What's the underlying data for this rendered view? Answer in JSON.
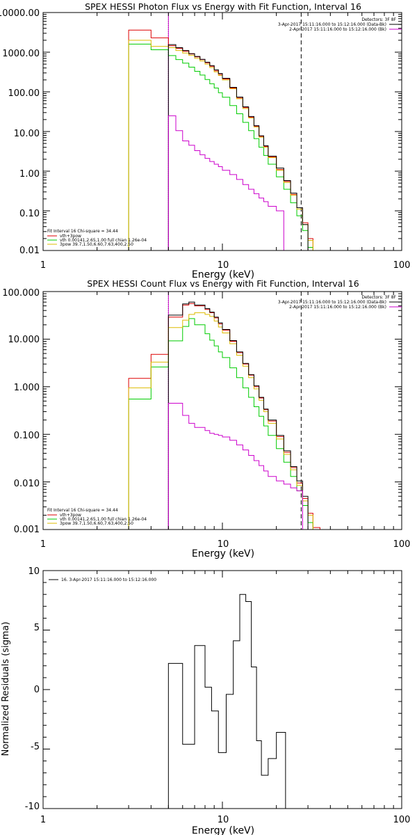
{
  "chart_data": [
    {
      "type": "line",
      "title": "SPEX HESSI Photon Flux vs Energy with Fit Function, Interval 16",
      "xlabel": "Energy (keV)",
      "xscale": "log",
      "yscale": "log",
      "xlim": [
        1,
        100
      ],
      "ylim": [
        0.01,
        10000
      ],
      "xticks": [
        "1",
        "10",
        "100"
      ],
      "yticks": [
        "10000.00",
        "1000.00",
        "100.00",
        "10.00",
        "1.00",
        "0.10",
        "0.01"
      ],
      "vlines": [
        {
          "x": 5,
          "style": "dotted",
          "color": "#000000"
        },
        {
          "x": 5,
          "style": "solid",
          "color": "#cc00cc"
        },
        {
          "x": 27.5,
          "style": "dashed",
          "color": "#000000"
        }
      ],
      "legend_tr": {
        "header": "Detectors: 3F 8F",
        "items": [
          {
            "text": "3-Apr-2017 15:11:16.000 to 15:12:16.000 (Data-Bk)",
            "color": "#000000"
          },
          {
            "text": "2-Apr-2017 15:11:16.000 to 15:12:16.000 (Bk)",
            "color": "#cc00cc"
          }
        ]
      },
      "legend_bl": {
        "header": "Fit Interval 16    Chi-square = 34.44",
        "items": [
          {
            "text": "vth+3pow",
            "color": "#dd0000"
          },
          {
            "text": "vth 0.00141,2.65,1.00  full chian 1.26e-04",
            "color": "#00cc00"
          },
          {
            "text": "3pow 39.7,1.50,6.60,7.63,400,2.50",
            "color": "#ddbb00"
          }
        ]
      },
      "edges": [
        3,
        4,
        5,
        5.5,
        6,
        6.5,
        7,
        7.5,
        8,
        8.5,
        9,
        9.5,
        10,
        11,
        12,
        13,
        14,
        15,
        16,
        17,
        18,
        20,
        22,
        24,
        26,
        28,
        30,
        32,
        35
      ],
      "series": [
        {
          "name": "vth+3pow",
          "color": "#dd0000",
          "values": [
            3600,
            2300,
            1450,
            1240,
            1050,
            900,
            760,
            650,
            540,
            440,
            340,
            275,
            210,
            125,
            70,
            40,
            23,
            13.5,
            7.5,
            4.2,
            2.3,
            1.1,
            0.55,
            0.26,
            0.12,
            0.05,
            0.02,
            0.01
          ]
        },
        {
          "name": "vth 0.00141,2.65,1.00  full chian 1.26e-04",
          "color": "#00cc00",
          "values": [
            1600,
            1150,
            820,
            650,
            530,
            420,
            330,
            265,
            205,
            160,
            125,
            95,
            73,
            45,
            28,
            17,
            10.5,
            6.6,
            4.0,
            2.5,
            1.5,
            0.72,
            0.35,
            0.16,
            0.075,
            0.032,
            0.012
          ]
        },
        {
          "name": "3pow 39.7,1.50,6.60,7.63,400,2.50",
          "color": "#ddbb00",
          "values": [
            2000,
            1400,
            1300,
            1100,
            950,
            830,
            700,
            600,
            500,
            410,
            320,
            260,
            200,
            120,
            67,
            38,
            22,
            13,
            7.2,
            4.0,
            2.2,
            1.05,
            0.52,
            0.25,
            0.11,
            0.045,
            0.018,
            0.008
          ]
        },
        {
          "name": "3-Apr-2017 15:11:16.000 to 15:12:16.000 (Data-Bk)",
          "color": "#000000",
          "values": [
            null,
            null,
            1550,
            1300,
            1100,
            920,
            780,
            660,
            560,
            460,
            360,
            290,
            220,
            130,
            74,
            42,
            24,
            14,
            7.8,
            4.4,
            2.4,
            1.2,
            0.58,
            0.28,
            0.12,
            0.045
          ]
        },
        {
          "name": "2-Apr-2017 15:11:16.000 to 15:12:16.000 (Bk)",
          "color": "#cc00cc",
          "values": [
            null,
            null,
            25,
            10.5,
            5.8,
            4.5,
            3.3,
            2.6,
            2.1,
            1.75,
            1.5,
            1.3,
            1.05,
            0.82,
            0.62,
            0.46,
            0.35,
            0.27,
            0.21,
            0.17,
            0.13,
            0.1
          ]
        }
      ]
    },
    {
      "type": "line",
      "title": "SPEX HESSI Count Flux vs Energy with Fit Function, Interval 16",
      "xlabel": "Energy (keV)",
      "xscale": "log",
      "yscale": "log",
      "xlim": [
        1,
        100
      ],
      "ylim": [
        0.001,
        100
      ],
      "xticks": [
        "1",
        "10",
        "100"
      ],
      "yticks": [
        "100.000",
        "10.000",
        "1.000",
        "0.100",
        "0.010",
        "0.001"
      ],
      "vlines": [
        {
          "x": 5,
          "style": "dotted",
          "color": "#000000"
        },
        {
          "x": 5,
          "style": "solid",
          "color": "#cc00cc"
        },
        {
          "x": 27.5,
          "style": "dashed",
          "color": "#000000"
        }
      ],
      "legend_tr": {
        "header": "Detectors: 3F 8F",
        "items": [
          {
            "text": "3-Apr-2017 15:11:16.000 to 15:12:16.000 (Data-Bk)",
            "color": "#000000"
          },
          {
            "text": "2-Apr-2017 15:11:16.000 to 15:12:16.000 (Bk)",
            "color": "#cc00cc"
          }
        ]
      },
      "legend_bl": {
        "header": "Fit Interval 16    Chi-square = 34.44",
        "items": [
          {
            "text": "vth+3pow",
            "color": "#dd0000"
          },
          {
            "text": "vth 0.00141,2.65,1.00  full chian 1.26e-04",
            "color": "#00cc00"
          },
          {
            "text": "3pow 39.7,1.50,6.60,7.63,400,2.50",
            "color": "#ddbb00"
          }
        ]
      },
      "edges": [
        3,
        4,
        5,
        6,
        6.5,
        7,
        8,
        8.5,
        9,
        9.5,
        10,
        11,
        12,
        13,
        14,
        15,
        16,
        17,
        18,
        20,
        22,
        24,
        26,
        28,
        30,
        32,
        35,
        38
      ],
      "series": [
        {
          "name": "vth+3pow",
          "color": "#dd0000",
          "values": [
            1.5,
            4.8,
            29,
            52,
            56,
            50,
            42,
            36,
            28,
            21,
            15.5,
            9.0,
            5.2,
            3.0,
            1.75,
            1.0,
            0.58,
            0.33,
            0.19,
            0.09,
            0.042,
            0.02,
            0.0095,
            0.0045,
            0.0022,
            0.0011,
            0.0005
          ]
        },
        {
          "name": "vth 0.00141,2.65,1.00  full chian 1.26e-04",
          "color": "#00cc00",
          "values": [
            0.55,
            2.6,
            9.2,
            18.5,
            27,
            20,
            13,
            9.5,
            7.2,
            5.4,
            4.1,
            2.5,
            1.55,
            0.95,
            0.6,
            0.38,
            0.24,
            0.15,
            0.095,
            0.05,
            0.026,
            0.013,
            0.0065,
            0.0032,
            0.0014,
            0.0006
          ]
        },
        {
          "name": "3pow 39.7,1.50,6.60,7.63,400,2.50",
          "color": "#ddbb00",
          "values": [
            0.95,
            3.3,
            17.5,
            25,
            33,
            36,
            33,
            30,
            24,
            18,
            13.5,
            8.0,
            4.6,
            2.7,
            1.55,
            0.9,
            0.52,
            0.3,
            0.17,
            0.08,
            0.038,
            0.018,
            0.0085,
            0.004,
            0.002,
            0.0009,
            0.0004
          ]
        },
        {
          "name": "3-Apr-2017 15:11:16.000 to 15:12:16.000 (Data-Bk)",
          "color": "#000000",
          "values": [
            null,
            null,
            32,
            55,
            60,
            52,
            44,
            37,
            29,
            22,
            16,
            9.3,
            5.4,
            3.1,
            1.8,
            1.05,
            0.6,
            0.34,
            0.2,
            0.095,
            0.045,
            0.021,
            0.0105,
            0.005
          ]
        },
        {
          "name": "2-Apr-2017 15:11:16.000 to 15:12:16.000 (Bk)",
          "color": "#cc00cc",
          "values": [
            null,
            null,
            0.45,
            0.25,
            0.17,
            0.14,
            0.12,
            0.105,
            0.1,
            0.095,
            0.088,
            0.075,
            0.06,
            0.047,
            0.036,
            0.028,
            0.022,
            0.017,
            0.013,
            0.0105,
            0.009,
            0.0075,
            0.0065
          ]
        }
      ]
    },
    {
      "type": "line",
      "title": "",
      "xlabel": "Energy (keV)",
      "ylabel": "Normalized Residuals (sigma)",
      "xscale": "log",
      "yscale": "linear",
      "xlim": [
        1,
        100
      ],
      "ylim": [
        -10,
        10
      ],
      "xticks": [
        "1",
        "10",
        "100"
      ],
      "yticks": [
        "10",
        "5",
        "0",
        "-5",
        "-10"
      ],
      "legend_tl": {
        "items": [
          {
            "text": "16.  3-Apr-2017 15:11:16.000 to 15:12:16.000",
            "color": "#000000"
          }
        ]
      },
      "edges": [
        5,
        6,
        7,
        8,
        8.7,
        9.5,
        10.5,
        11.5,
        12.5,
        13.5,
        14.5,
        15.5,
        16.5,
        18,
        20,
        22.5,
        25,
        28
      ],
      "series": [
        {
          "name": "",
          "color": "#000000",
          "values": [
            2.2,
            -4.6,
            3.7,
            0.2,
            -1.8,
            -5.3,
            -0.4,
            4.1,
            8.0,
            7.4,
            1.9,
            -4.3,
            -7.2,
            -5.8,
            -3.6,
            -10
          ]
        }
      ]
    }
  ]
}
